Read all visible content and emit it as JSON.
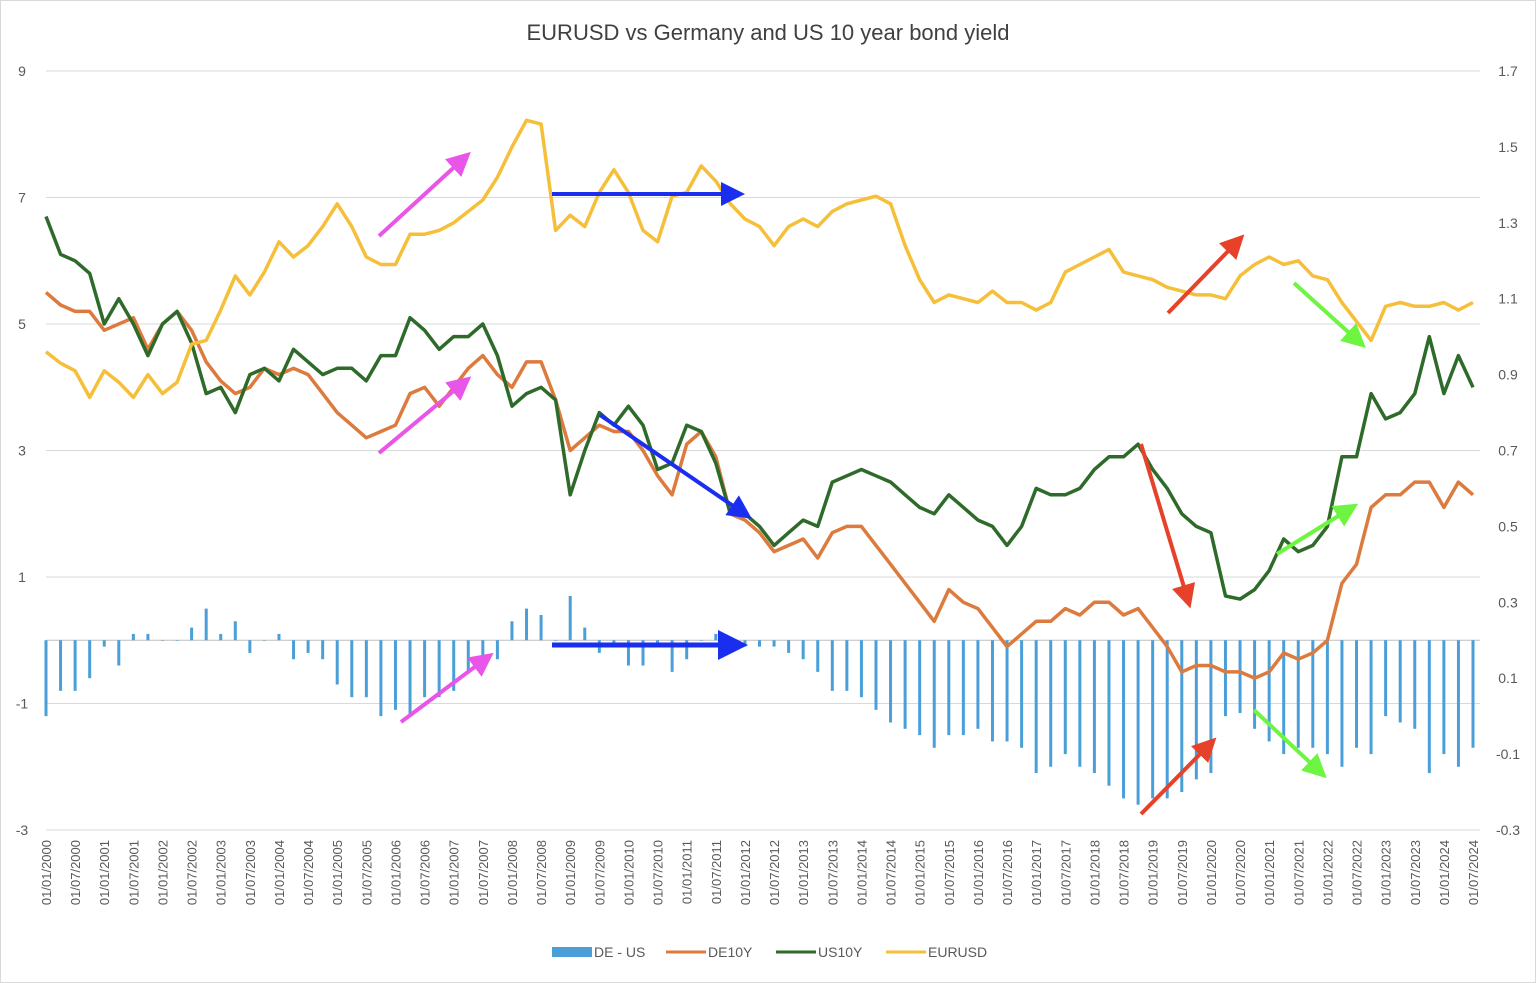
{
  "chart_data": {
    "type": "line+bar",
    "title": "EURUSD vs Germany and US 10 year bond yield",
    "y_left": {
      "ticks": [
        "9",
        "7",
        "5",
        "3",
        "1",
        "-1",
        "-3"
      ],
      "range": [
        -3,
        9
      ]
    },
    "y_right": {
      "ticks": [
        "1.7",
        "1.5",
        "1.3",
        "1.1",
        "0.9",
        "0.7",
        "0.5",
        "0.3",
        "0.1",
        "-0.1",
        "-0.3"
      ],
      "range": [
        -0.3,
        1.7
      ]
    },
    "x_ticks": [
      "01/01/2000",
      "01/07/2000",
      "01/01/2001",
      "01/07/2001",
      "01/01/2002",
      "01/07/2002",
      "01/01/2003",
      "01/07/2003",
      "01/01/2004",
      "01/07/2004",
      "01/01/2005",
      "01/07/2005",
      "01/01/2006",
      "01/07/2006",
      "01/01/2007",
      "01/07/2007",
      "01/01/2008",
      "01/07/2008",
      "01/01/2009",
      "01/07/2009",
      "01/01/2010",
      "01/07/2010",
      "01/01/2011",
      "01/07/2011",
      "01/01/2012",
      "01/07/2012",
      "01/01/2013",
      "01/07/2013",
      "01/01/2014",
      "01/07/2014",
      "01/01/2015",
      "01/07/2015",
      "01/01/2016",
      "01/07/2016",
      "01/01/2017",
      "01/07/2017",
      "01/01/2018",
      "01/07/2018",
      "01/01/2019",
      "01/07/2019",
      "01/01/2020",
      "01/07/2020",
      "01/01/2021",
      "01/07/2021",
      "01/01/2022",
      "01/07/2022",
      "01/01/2023",
      "01/07/2023",
      "01/01/2024",
      "01/07/2024"
    ],
    "x_start": "2000-01",
    "x_step": "quarter",
    "grid": true,
    "legend_position": "bottom",
    "series": [
      {
        "name": "DE - US",
        "type": "bar",
        "axis": "left",
        "color": "#4a9fd8",
        "values": [
          -1.2,
          -0.8,
          -0.8,
          -0.6,
          -0.1,
          -0.4,
          0.1,
          0.1,
          0,
          0,
          0.2,
          0.5,
          0.1,
          0.3,
          -0.2,
          0,
          0.1,
          -0.3,
          -0.2,
          -0.3,
          -0.7,
          -0.9,
          -0.9,
          -1.2,
          -1.1,
          -1.2,
          -0.9,
          -0.9,
          -0.8,
          -0.5,
          -0.5,
          -0.3,
          0.3,
          0.5,
          0.4,
          0,
          0.7,
          0.2,
          -0.2,
          -0.1,
          -0.4,
          -0.4,
          -0.1,
          -0.5,
          -0.3,
          0,
          0.1,
          0,
          -0.1,
          -0.1,
          -0.1,
          -0.2,
          -0.3,
          -0.5,
          -0.8,
          -0.8,
          -0.9,
          -1.1,
          -1.3,
          -1.4,
          -1.5,
          -1.7,
          -1.5,
          -1.5,
          -1.4,
          -1.6,
          -1.6,
          -1.7,
          -2.1,
          -2.0,
          -1.8,
          -2.0,
          -2.1,
          -2.3,
          -2.5,
          -2.6,
          -2.5,
          -2.5,
          -2.4,
          -2.2,
          -2.1,
          -1.2,
          -1.15,
          -1.4,
          -1.6,
          -1.8,
          -1.7,
          -1.7,
          -1.8,
          -2.0,
          -1.7,
          -1.8,
          -1.2,
          -1.3,
          -1.4,
          -2.1,
          -1.8,
          -2.0,
          -1.7
        ]
      },
      {
        "name": "DE10Y",
        "type": "line",
        "axis": "left",
        "color": "#dd7a3e",
        "values": [
          5.5,
          5.3,
          5.2,
          5.2,
          4.9,
          5.0,
          5.1,
          4.6,
          5.0,
          5.2,
          4.9,
          4.4,
          4.1,
          3.9,
          4.0,
          4.3,
          4.2,
          4.3,
          4.2,
          3.9,
          3.6,
          3.4,
          3.2,
          3.3,
          3.4,
          3.9,
          4.0,
          3.7,
          4.0,
          4.3,
          4.5,
          4.2,
          4.0,
          4.4,
          4.4,
          3.8,
          3.0,
          3.2,
          3.4,
          3.3,
          3.3,
          3.0,
          2.6,
          2.3,
          3.1,
          3.3,
          2.9,
          2.0,
          1.9,
          1.7,
          1.4,
          1.5,
          1.6,
          1.3,
          1.7,
          1.8,
          1.8,
          1.5,
          1.2,
          0.9,
          0.6,
          0.3,
          0.8,
          0.6,
          0.5,
          0.2,
          -0.1,
          0.1,
          0.3,
          0.3,
          0.5,
          0.4,
          0.6,
          0.6,
          0.4,
          0.5,
          0.2,
          -0.1,
          -0.5,
          -0.4,
          -0.4,
          -0.5,
          -0.5,
          -0.6,
          -0.5,
          -0.2,
          -0.3,
          -0.2,
          0.0,
          0.9,
          1.2,
          2.1,
          2.3,
          2.3,
          2.5,
          2.5,
          2.1,
          2.5,
          2.3
        ]
      },
      {
        "name": "US10Y",
        "type": "line",
        "axis": "left",
        "color": "#2e6b2a",
        "values": [
          6.7,
          6.1,
          6.0,
          5.8,
          5.0,
          5.4,
          5.0,
          4.5,
          5.0,
          5.2,
          4.7,
          3.9,
          4.0,
          3.6,
          4.2,
          4.3,
          4.1,
          4.6,
          4.4,
          4.2,
          4.3,
          4.3,
          4.1,
          4.5,
          4.5,
          5.1,
          4.9,
          4.6,
          4.8,
          4.8,
          5.0,
          4.5,
          3.7,
          3.9,
          4.0,
          3.8,
          2.3,
          3.0,
          3.6,
          3.4,
          3.7,
          3.4,
          2.7,
          2.8,
          3.4,
          3.3,
          2.8,
          2.0,
          2.0,
          1.8,
          1.5,
          1.7,
          1.9,
          1.8,
          2.5,
          2.6,
          2.7,
          2.6,
          2.5,
          2.3,
          2.1,
          2.0,
          2.3,
          2.1,
          1.9,
          1.8,
          1.5,
          1.8,
          2.4,
          2.3,
          2.3,
          2.4,
          2.7,
          2.9,
          2.9,
          3.1,
          2.7,
          2.4,
          2.0,
          1.8,
          1.7,
          0.7,
          0.65,
          0.8,
          1.1,
          1.6,
          1.4,
          1.5,
          1.8,
          2.9,
          2.9,
          3.9,
          3.5,
          3.6,
          3.9,
          4.8,
          3.9,
          4.5,
          4.0
        ]
      },
      {
        "name": "EURUSD",
        "type": "line",
        "axis": "right",
        "color": "#f5bf3a",
        "values": [
          0.96,
          0.93,
          0.91,
          0.84,
          0.91,
          0.88,
          0.84,
          0.9,
          0.85,
          0.88,
          0.98,
          0.99,
          1.07,
          1.16,
          1.11,
          1.17,
          1.25,
          1.21,
          1.24,
          1.29,
          1.35,
          1.29,
          1.21,
          1.19,
          1.19,
          1.27,
          1.27,
          1.28,
          1.3,
          1.33,
          1.36,
          1.42,
          1.5,
          1.57,
          1.56,
          1.28,
          1.32,
          1.29,
          1.38,
          1.44,
          1.38,
          1.28,
          1.25,
          1.37,
          1.38,
          1.45,
          1.41,
          1.35,
          1.31,
          1.29,
          1.24,
          1.29,
          1.31,
          1.29,
          1.33,
          1.35,
          1.36,
          1.37,
          1.35,
          1.24,
          1.15,
          1.09,
          1.11,
          1.1,
          1.09,
          1.12,
          1.09,
          1.09,
          1.07,
          1.09,
          1.17,
          1.19,
          1.21,
          1.23,
          1.17,
          1.16,
          1.15,
          1.13,
          1.12,
          1.11,
          1.11,
          1.1,
          1.16,
          1.19,
          1.21,
          1.19,
          1.2,
          1.16,
          1.15,
          1.09,
          1.04,
          0.99,
          1.08,
          1.09,
          1.08,
          1.08,
          1.09,
          1.07,
          1.09
        ]
      }
    ],
    "annotations": {
      "arrow_colors": {
        "magenta": "#e855e8",
        "blue": "#1a2ef0",
        "red": "#e8412a",
        "green": "#6ef542"
      }
    }
  }
}
